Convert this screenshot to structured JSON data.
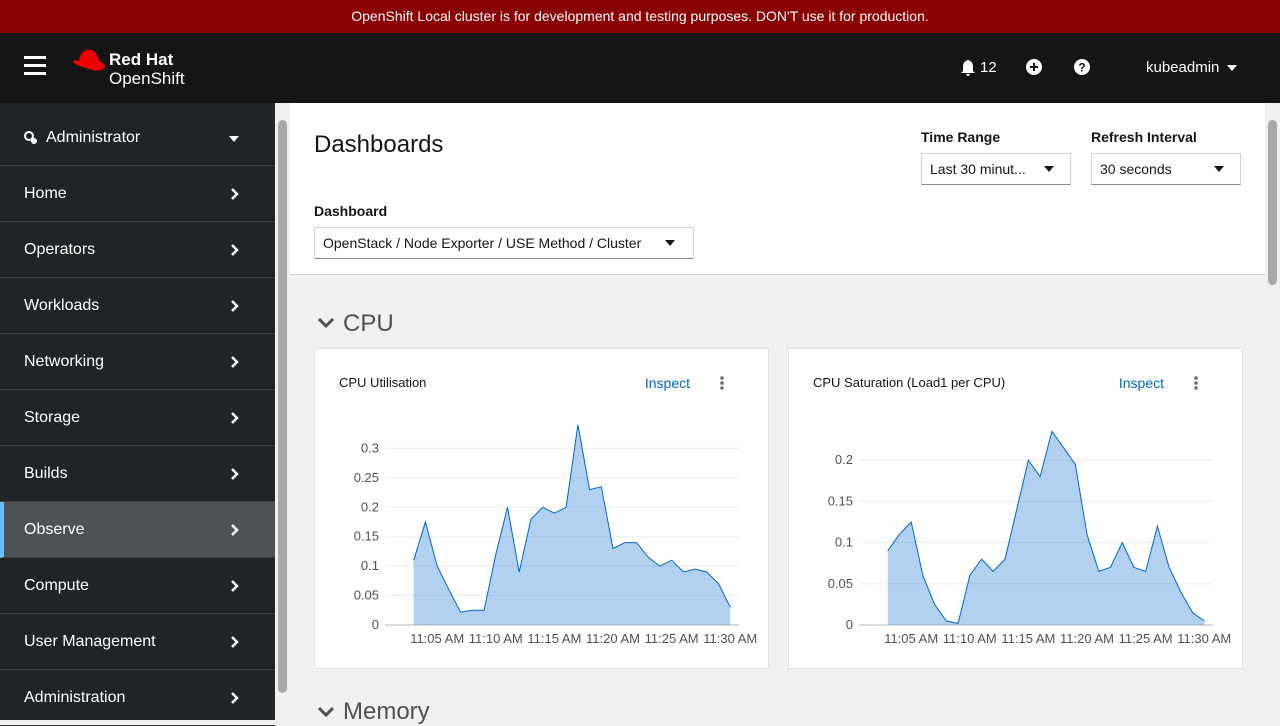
{
  "banner": "OpenShift Local cluster is for development and testing purposes. DON'T use it for production.",
  "header": {
    "brand_top": "Red Hat",
    "brand_bottom": "OpenShift",
    "notifications": "12",
    "user": "kubeadmin"
  },
  "nav": {
    "perspective": "Administrator",
    "items": [
      "Home",
      "Operators",
      "Workloads",
      "Networking",
      "Storage",
      "Builds",
      "Observe",
      "Compute",
      "User Management",
      "Administration"
    ]
  },
  "page": {
    "title": "Dashboards",
    "time_range": {
      "label": "Time Range",
      "value": "Last 30 minut..."
    },
    "refresh": {
      "label": "Refresh Interval",
      "value": "30 seconds"
    },
    "dashboard": {
      "label": "Dashboard",
      "value": "OpenStack / Node Exporter / USE Method / Cluster"
    },
    "sections": [
      "CPU",
      "Memory"
    ],
    "panel_action": "Inspect"
  },
  "chart_data": [
    {
      "type": "area",
      "title": "CPU Utilisation",
      "color": "#0066cc",
      "grid": true,
      "x": [
        "11:03 AM",
        "11:04 AM",
        "11:05 AM",
        "11:06 AM",
        "11:07 AM",
        "11:08 AM",
        "11:09 AM",
        "11:10 AM",
        "11:11 AM",
        "11:12 AM",
        "11:13 AM",
        "11:14 AM",
        "11:15 AM",
        "11:16 AM",
        "11:17 AM",
        "11:18 AM",
        "11:19 AM",
        "11:20 AM",
        "11:21 AM",
        "11:22 AM",
        "11:23 AM",
        "11:24 AM",
        "11:25 AM",
        "11:26 AM",
        "11:27 AM",
        "11:28 AM",
        "11:29 AM",
        "11:30 AM"
      ],
      "values": [
        0.11,
        0.175,
        0.1,
        0.06,
        0.022,
        0.025,
        0.025,
        0.12,
        0.2,
        0.09,
        0.18,
        0.2,
        0.19,
        0.2,
        0.34,
        0.23,
        0.235,
        0.13,
        0.14,
        0.14,
        0.115,
        0.1,
        0.11,
        0.09,
        0.095,
        0.09,
        0.07,
        0.03
      ],
      "xlim": [
        "11:02 AM",
        "11:31 AM"
      ],
      "xticks": [
        "11:05 AM",
        "11:10 AM",
        "11:15 AM",
        "11:20 AM",
        "11:25 AM",
        "11:30 AM"
      ],
      "ylim": [
        0,
        0.35
      ],
      "yticks": [
        0,
        0.05,
        0.1,
        0.15,
        0.2,
        0.25,
        0.3
      ]
    },
    {
      "type": "area",
      "title": "CPU Saturation (Load1 per CPU)",
      "color": "#0066cc",
      "grid": true,
      "x": [
        "11:03 AM",
        "11:04 AM",
        "11:05 AM",
        "11:06 AM",
        "11:07 AM",
        "11:08 AM",
        "11:09 AM",
        "11:10 AM",
        "11:11 AM",
        "11:12 AM",
        "11:13 AM",
        "11:14 AM",
        "11:15 AM",
        "11:16 AM",
        "11:17 AM",
        "11:18 AM",
        "11:19 AM",
        "11:20 AM",
        "11:21 AM",
        "11:22 AM",
        "11:23 AM",
        "11:24 AM",
        "11:25 AM",
        "11:26 AM",
        "11:27 AM",
        "11:28 AM",
        "11:29 AM",
        "11:30 AM"
      ],
      "values": [
        0.09,
        0.11,
        0.125,
        0.06,
        0.025,
        0.005,
        0.002,
        0.06,
        0.08,
        0.065,
        0.08,
        0.14,
        0.2,
        0.18,
        0.235,
        0.215,
        0.195,
        0.11,
        0.065,
        0.07,
        0.1,
        0.07,
        0.065,
        0.12,
        0.07,
        0.04,
        0.015,
        0.005
      ],
      "xlim": [
        "11:02 AM",
        "11:31 AM"
      ],
      "xticks": [
        "11:05 AM",
        "11:10 AM",
        "11:15 AM",
        "11:20 AM",
        "11:25 AM",
        "11:30 AM"
      ],
      "ylim": [
        0,
        0.25
      ],
      "yticks": [
        0,
        0.05,
        0.1,
        0.15,
        0.2
      ]
    }
  ]
}
